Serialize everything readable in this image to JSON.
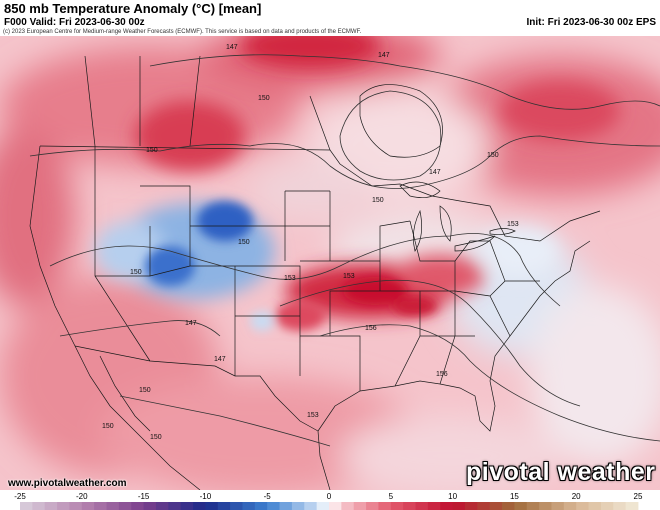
{
  "header": {
    "title": "850 mb Temperature Anomaly (°C) [mean]",
    "valid": "F000 Valid: Fri 2023-06-30 00z",
    "init": "Init: Fri 2023-06-30 00z EPS",
    "copyright": "(c) 2023 European Centre for Medium-range Weather Forecasts (ECMWF). This service is based on data and products of the ECMWF."
  },
  "map": {
    "contour_labels": [
      "147",
      "147",
      "150",
      "150",
      "150",
      "147",
      "150",
      "153",
      "150",
      "153",
      "150",
      "147",
      "147",
      "150",
      "153",
      "156",
      "156",
      "150",
      "153",
      "150"
    ],
    "colors": {
      "strong_warm": "#d0203a",
      "warm": "#e56b7c",
      "light_warm": "#f3b7bf",
      "neutral": "#f2f4f8",
      "light_cool": "#a9c7ea",
      "cool": "#5f95d6",
      "strong_cool": "#2f63c2"
    }
  },
  "footer": {
    "site_url": "www.pivotalweather.com",
    "brand": "pivotal weather"
  },
  "colorbar": {
    "ticks": [
      "-25",
      "-20",
      "-15",
      "-10",
      "-5",
      "0",
      "5",
      "10",
      "15",
      "20",
      "25"
    ],
    "min": -25,
    "max": 25,
    "stops": [
      {
        "v": -25,
        "c": "#d9d0dc"
      },
      {
        "v": -20,
        "c": "#b784b0"
      },
      {
        "v": -15,
        "c": "#7b3f8c"
      },
      {
        "v": -10,
        "c": "#1c2a8a"
      },
      {
        "v": -5,
        "c": "#3d7fd0"
      },
      {
        "v": -1,
        "c": "#c8dcf3"
      },
      {
        "v": 0,
        "c": "#ffffff"
      },
      {
        "v": 1,
        "c": "#f6c9cf"
      },
      {
        "v": 5,
        "c": "#e25a6d"
      },
      {
        "v": 10,
        "c": "#c01030"
      },
      {
        "v": 15,
        "c": "#a06a3a"
      },
      {
        "v": 20,
        "c": "#d8b694"
      },
      {
        "v": 25,
        "c": "#f2ead8"
      }
    ]
  }
}
